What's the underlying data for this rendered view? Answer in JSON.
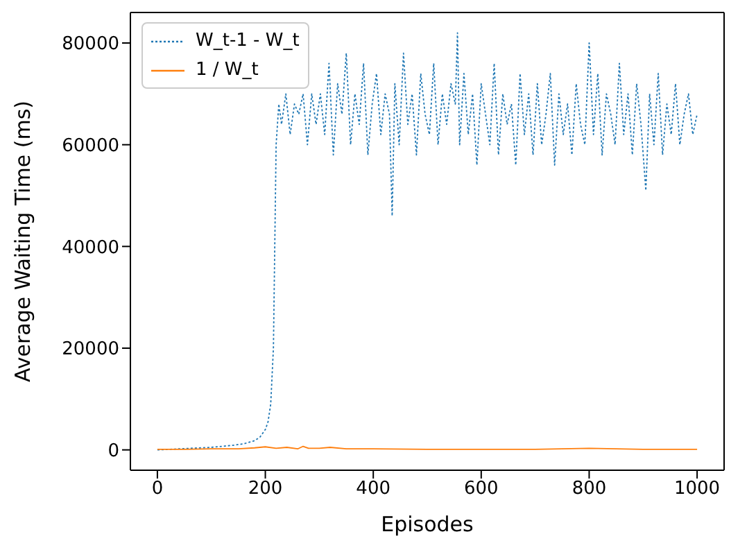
{
  "chart_data": {
    "type": "line",
    "xlabel": "Episodes",
    "ylabel": "Average Waiting Time (ms)",
    "xlim": [
      -50,
      1050
    ],
    "ylim": [
      -4000,
      86000
    ],
    "xticks": [
      0,
      200,
      400,
      600,
      800,
      1000
    ],
    "yticks": [
      0,
      20000,
      40000,
      60000,
      80000
    ],
    "grid": false,
    "legend": "top left",
    "marker": "none",
    "series": [
      {
        "name": "W_t-1 - W_t",
        "color": "#1f77b4",
        "line_style": "dotted",
        "x": [
          0,
          20,
          40,
          60,
          80,
          100,
          120,
          140,
          160,
          180,
          190,
          200,
          205,
          210,
          215,
          220,
          225,
          230,
          238,
          246,
          254,
          262,
          270,
          278,
          286,
          294,
          302,
          310,
          318,
          326,
          334,
          342,
          350,
          358,
          366,
          374,
          382,
          390,
          398,
          406,
          414,
          422,
          430,
          435,
          440,
          448,
          456,
          464,
          472,
          480,
          488,
          496,
          504,
          512,
          520,
          528,
          536,
          544,
          552,
          556,
          560,
          568,
          576,
          584,
          592,
          600,
          608,
          616,
          624,
          632,
          640,
          648,
          656,
          664,
          672,
          680,
          688,
          696,
          704,
          712,
          720,
          728,
          736,
          744,
          752,
          760,
          768,
          776,
          784,
          792,
          800,
          808,
          816,
          824,
          832,
          840,
          848,
          856,
          864,
          872,
          880,
          888,
          896,
          905,
          912,
          920,
          928,
          936,
          944,
          952,
          960,
          968,
          976,
          984,
          992,
          1000
        ],
        "values": [
          0,
          100,
          200,
          300,
          400,
          500,
          700,
          900,
          1200,
          1800,
          2500,
          4000,
          5500,
          9000,
          20000,
          60000,
          68000,
          64000,
          70000,
          62000,
          68000,
          66000,
          70000,
          60000,
          70000,
          64000,
          70000,
          62000,
          76000,
          58000,
          72000,
          66000,
          78000,
          60000,
          70000,
          64000,
          76000,
          58000,
          68000,
          74000,
          62000,
          70000,
          66000,
          46000,
          72000,
          60000,
          78000,
          64000,
          70000,
          58000,
          74000,
          66000,
          62000,
          76000,
          60000,
          70000,
          64000,
          72000,
          68000,
          82000,
          60000,
          74000,
          62000,
          70000,
          56000,
          72000,
          66000,
          60000,
          76000,
          58000,
          70000,
          64000,
          68000,
          56000,
          74000,
          62000,
          70000,
          58000,
          72000,
          60000,
          66000,
          74000,
          56000,
          70000,
          62000,
          68000,
          58000,
          72000,
          64000,
          60000,
          80000,
          62000,
          74000,
          58000,
          70000,
          66000,
          60000,
          76000,
          62000,
          70000,
          58000,
          72000,
          64000,
          51000,
          70000,
          60000,
          74000,
          58000,
          68000,
          62000,
          72000,
          60000,
          66000,
          70000,
          62000,
          66000
        ]
      },
      {
        "name": "1 / W_t",
        "color": "#ff7f0e",
        "line_style": "solid",
        "x": [
          0,
          50,
          100,
          150,
          180,
          200,
          220,
          240,
          260,
          270,
          280,
          300,
          320,
          350,
          400,
          500,
          600,
          700,
          800,
          900,
          1000
        ],
        "values": [
          100,
          100,
          200,
          200,
          400,
          600,
          300,
          500,
          200,
          700,
          300,
          300,
          500,
          200,
          200,
          100,
          100,
          100,
          300,
          100,
          100
        ]
      }
    ]
  }
}
